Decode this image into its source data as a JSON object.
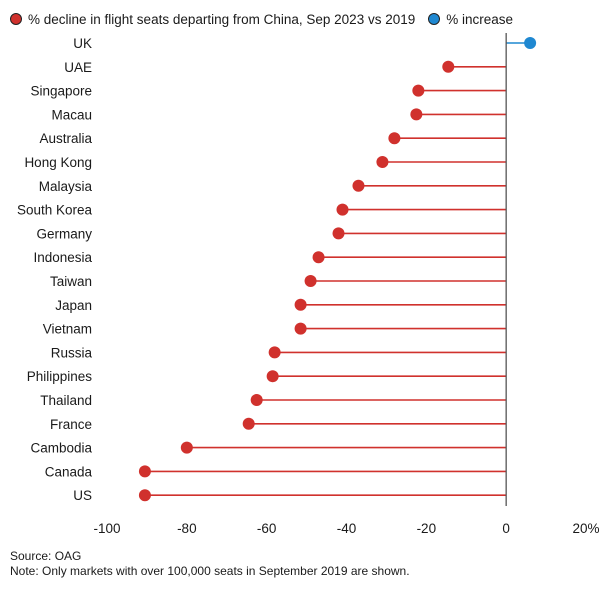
{
  "legend": {
    "decline_label": "% decline in flight seats departing from China, Sep 2023 vs 2019",
    "increase_label": "% increase"
  },
  "colors": {
    "decline": "#d0312d",
    "increase": "#1f88d1",
    "axis": "#555555",
    "text": "#1a1a1a"
  },
  "chart_data": {
    "type": "lollipop",
    "title": "% decline in flight seats departing from China, Sep 2023 vs 2019",
    "xlim": [
      -100,
      20
    ],
    "x_ticks": [
      "-100",
      "-80",
      "-60",
      "-40",
      "-20",
      "0",
      "20%"
    ],
    "x_tick_values": [
      -100,
      -80,
      -60,
      -40,
      -20,
      0,
      20
    ],
    "categories": [
      "UK",
      "UAE",
      "Singapore",
      "Macau",
      "Australia",
      "Hong Kong",
      "Malaysia",
      "South Korea",
      "Germany",
      "Indonesia",
      "Taiwan",
      "Japan",
      "Vietnam",
      "Russia",
      "Philippines",
      "Thailand",
      "France",
      "Cambodia",
      "Canada",
      "US"
    ],
    "values": [
      6,
      -14.5,
      -22,
      -22.5,
      -28,
      -31,
      -37,
      -41,
      -42,
      -47,
      -49,
      -51.5,
      -51.5,
      -58,
      -58.5,
      -62.5,
      -64.5,
      -80,
      -90.5,
      -90.5
    ],
    "grid": false,
    "legend_position": "top-left"
  },
  "footer": {
    "source": "Source: OAG",
    "note": "Note: Only markets with over 100,000 seats in September 2019 are shown."
  }
}
